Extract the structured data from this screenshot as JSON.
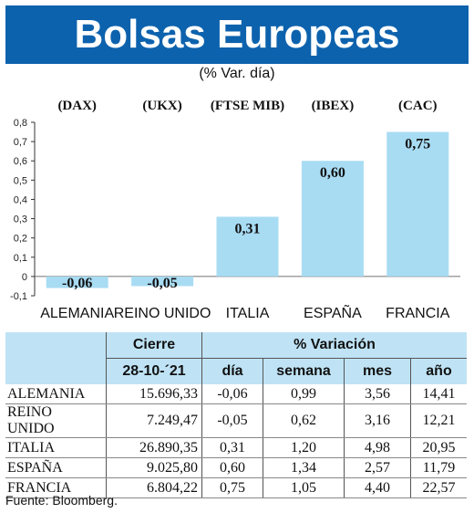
{
  "title": "Bolsas Europeas",
  "subtitle": "(% Var. día)",
  "chart_data": {
    "type": "bar",
    "categories": [
      "ALEMANIA",
      "REINO UNIDO",
      "ITALIA",
      "ESPAÑA",
      "FRANCIA"
    ],
    "indices": [
      "(DAX)",
      "(UKX)",
      "(FTSE MIB)",
      "(IBEX)",
      "(CAC)"
    ],
    "values": [
      -0.06,
      -0.05,
      0.31,
      0.6,
      0.75
    ],
    "value_labels": [
      "-0,06",
      "-0,05",
      "0,31",
      "0,60",
      "0,75"
    ],
    "ylim": [
      -0.1,
      0.8
    ],
    "yticks": [
      -0.1,
      0,
      0.1,
      0.2,
      0.3,
      0.4,
      0.5,
      0.6,
      0.7,
      0.8
    ],
    "ytick_labels": [
      "-0,1",
      "0",
      "0,1",
      "0,2",
      "0,3",
      "0,4",
      "0,5",
      "0,6",
      "0,7",
      "0,8"
    ],
    "bar_color": "#a8dcf3",
    "grid": false
  },
  "table": {
    "header_cierre": "Cierre",
    "header_variacion": "% Variación",
    "date": "28-10-´21",
    "col_dia": "día",
    "col_semana": "semana",
    "col_mes": "mes",
    "col_anio": "año",
    "rows": [
      {
        "country": "ALEMANIA",
        "cierre": "15.696,33",
        "dia": "-0,06",
        "semana": "0,99",
        "mes": "3,56",
        "anio": "14,41"
      },
      {
        "country": "REINO UNIDO",
        "cierre": "7.249,47",
        "dia": "-0,05",
        "semana": "0,62",
        "mes": "3,16",
        "anio": "12,21"
      },
      {
        "country": "ITALIA",
        "cierre": "26.890,35",
        "dia": "0,31",
        "semana": "1,20",
        "mes": "4,98",
        "anio": "20,95"
      },
      {
        "country": "ESPAÑA",
        "cierre": "9.025,80",
        "dia": "0,60",
        "semana": "1,34",
        "mes": "2,57",
        "anio": "11,79"
      },
      {
        "country": "FRANCIA",
        "cierre": "6.804,22",
        "dia": "0,75",
        "semana": "1,05",
        "mes": "4,40",
        "anio": "22,57"
      }
    ]
  },
  "source": "Fuente: Bloomberg."
}
